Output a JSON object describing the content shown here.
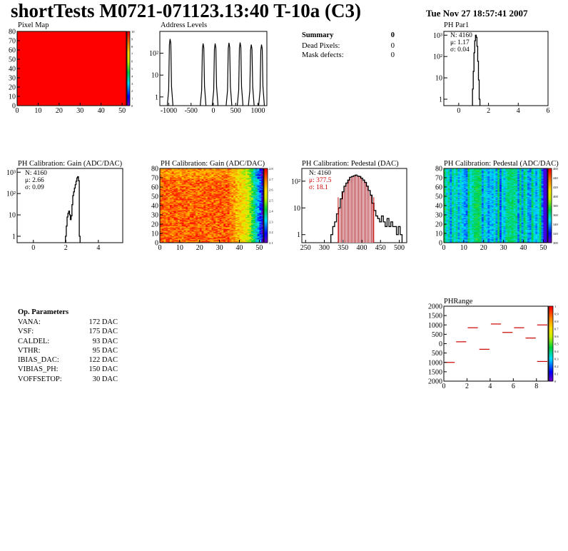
{
  "page": {
    "title": "shortTests M0721-071123.13:40 T-10a (C3)",
    "date": "Tue Nov 27 18:57:41 2007"
  },
  "summary": {
    "title": "Summary",
    "title_value": "0",
    "rows": [
      {
        "label": "Dead Pixels:",
        "value": "0"
      },
      {
        "label": "Mask defects:",
        "value": "0"
      }
    ]
  },
  "op_params": {
    "title": "Op. Parameters",
    "rows": [
      {
        "label": "VANA:",
        "value": "172 DAC"
      },
      {
        "label": "VSF:",
        "value": "175 DAC"
      },
      {
        "label": "CALDEL:",
        "value": "93 DAC"
      },
      {
        "label": "VTHR:",
        "value": "95 DAC"
      },
      {
        "label": "IBIAS_DAC:",
        "value": "122 DAC"
      },
      {
        "label": "VIBIAS_PH:",
        "value": "150 DAC"
      },
      {
        "label": "VOFFSETOP:",
        "value": "30 DAC"
      }
    ]
  },
  "colors": {
    "hist_line": "#000000",
    "stat_red": "#cc0000",
    "pedestal_fill": "#b0202a",
    "range_line": "#cc0000",
    "pixelmap_fill": "#ff0000"
  },
  "chart_data": [
    {
      "id": "pixel_map",
      "type": "heatmap",
      "title": "Pixel Map",
      "xlim": [
        0,
        52
      ],
      "ylim": [
        0,
        80
      ],
      "xticks": [
        0,
        10,
        20,
        30,
        40,
        50
      ],
      "yticks": [
        0,
        10,
        20,
        30,
        40,
        50,
        60,
        70,
        80
      ],
      "zlim": [
        0,
        10
      ],
      "uniform_value": 10,
      "zticks": [
        "0",
        "1",
        "2",
        "3",
        "4",
        "5",
        "6",
        "7",
        "8",
        "9",
        "10"
      ]
    },
    {
      "id": "address_levels",
      "type": "bar",
      "title": "Address Levels",
      "xlim": [
        -1200,
        1200
      ],
      "yscale": "log",
      "ylim": [
        0.4,
        1000
      ],
      "xticks": [
        -1000,
        -500,
        0,
        500,
        1000
      ],
      "yticks": [
        {
          "v": 1,
          "t": "1"
        },
        {
          "v": 10,
          "t": "10"
        },
        {
          "v": 100,
          "t": "10²"
        }
      ],
      "peaks": [
        {
          "x": -970,
          "y": 450
        },
        {
          "x": -230,
          "y": 280
        },
        {
          "x": 40,
          "y": 280
        },
        {
          "x": 350,
          "y": 300
        },
        {
          "x": 600,
          "y": 310
        },
        {
          "x": 850,
          "y": 250
        },
        {
          "x": 1080,
          "y": 250
        }
      ]
    },
    {
      "id": "ph_par1",
      "type": "bar",
      "title": "PH Par1",
      "xlim": [
        -1,
        6
      ],
      "yscale": "log",
      "ylim": [
        0.5,
        1500
      ],
      "xticks": [
        0,
        2,
        4,
        6
      ],
      "yticks": [
        {
          "v": 1,
          "t": "1"
        },
        {
          "v": 10,
          "t": "10"
        },
        {
          "v": 100,
          "t": "10²"
        },
        {
          "v": 1000,
          "t": "10³"
        }
      ],
      "stats": {
        "n": "N: 4160",
        "mean": "μ: 1.17",
        "sigma": "σ: 0.04"
      },
      "x": [
        0.95,
        1.0,
        1.05,
        1.1,
        1.15,
        1.2,
        1.25,
        1.3,
        1.35,
        1.4
      ],
      "values": [
        3,
        20,
        150,
        550,
        1000,
        800,
        300,
        60,
        8,
        1
      ]
    },
    {
      "id": "ph_gain",
      "type": "bar",
      "title": "PH Calibration: Gain (ADC/DAC)",
      "xlim": [
        -1,
        5.5
      ],
      "yscale": "log",
      "ylim": [
        0.5,
        1500
      ],
      "xticks": [
        0,
        2,
        4
      ],
      "yticks": [
        {
          "v": 1,
          "t": "1"
        },
        {
          "v": 10,
          "t": "10"
        },
        {
          "v": 100,
          "t": "10²"
        },
        {
          "v": 1000,
          "t": "10³"
        }
      ],
      "stats": {
        "n": "N: 4160",
        "mean": "μ: 2.66",
        "sigma": "σ: 0.09"
      },
      "x": [
        2.0,
        2.05,
        2.1,
        2.15,
        2.2,
        2.25,
        2.3,
        2.35,
        2.4,
        2.45,
        2.5,
        2.55,
        2.6,
        2.65,
        2.7,
        2.75,
        2.8,
        2.85
      ],
      "values": [
        1,
        3,
        8,
        12,
        15,
        10,
        6,
        9,
        30,
        80,
        120,
        180,
        260,
        380,
        540,
        620,
        400,
        1
      ]
    },
    {
      "id": "ph_gain_map",
      "type": "heatmap",
      "title": "PH Calibration: Gain (ADC/DAC)",
      "xlim": [
        0,
        52
      ],
      "ylim": [
        0,
        80
      ],
      "xticks": [
        0,
        10,
        20,
        30,
        40,
        50
      ],
      "yticks": [
        0,
        10,
        20,
        30,
        40,
        50,
        60,
        70,
        80
      ],
      "zlim": [
        2.05,
        2.8
      ],
      "zticks": [
        "2.1",
        "2.2",
        "2.3",
        "2.4",
        "2.5",
        "2.6",
        "2.7",
        "2.8"
      ]
    },
    {
      "id": "ph_pedestal",
      "type": "bar",
      "title": "PH Calibration: Pedestal (DAC)",
      "xlim": [
        240,
        520
      ],
      "yscale": "log",
      "ylim": [
        0.5,
        300
      ],
      "xticks": [
        250,
        300,
        350,
        400,
        450,
        500
      ],
      "yticks": [
        {
          "v": 1,
          "t": "1"
        },
        {
          "v": 10,
          "t": "10"
        },
        {
          "v": 100,
          "t": "10²"
        }
      ],
      "stats": {
        "n": "N: 4160",
        "mean": "μ: 377.5",
        "sigma": "σ: 18.1"
      },
      "cuts": [
        337,
        432
      ],
      "x": [
        320,
        325,
        330,
        335,
        340,
        345,
        350,
        355,
        360,
        365,
        370,
        375,
        380,
        385,
        390,
        395,
        400,
        405,
        410,
        415,
        420,
        425,
        430,
        435,
        440,
        445,
        450,
        455,
        460,
        465,
        470,
        475,
        480,
        485,
        490,
        495,
        500,
        505
      ],
      "values": [
        1,
        2,
        3,
        6,
        10,
        22,
        40,
        65,
        85,
        110,
        140,
        150,
        160,
        170,
        155,
        150,
        130,
        110,
        90,
        65,
        45,
        30,
        15,
        8,
        5,
        4,
        3,
        5,
        3,
        2,
        4,
        2,
        3,
        2,
        2,
        1,
        2,
        1
      ]
    },
    {
      "id": "ph_pedestal_map",
      "type": "heatmap",
      "title": "PH Calibration: Pedestal (ADC/DAC)",
      "xlim": [
        0,
        52
      ],
      "ylim": [
        0,
        80
      ],
      "xticks": [
        0,
        10,
        20,
        30,
        40,
        50
      ],
      "yticks": [
        0,
        10,
        20,
        30,
        40,
        50,
        60,
        70,
        80
      ],
      "zlim": [
        300,
        470
      ],
      "zticks": [
        "300",
        "320",
        "340",
        "360",
        "380",
        "400",
        "420",
        "440",
        "460"
      ]
    },
    {
      "id": "ph_range",
      "type": "scatter",
      "title": "PHRange",
      "xlim": [
        0,
        9
      ],
      "ylim": [
        -2000,
        2000
      ],
      "xticks": [
        0,
        2,
        4,
        6,
        8
      ],
      "yticks": [
        {
          "v": -2000,
          "t": "2000"
        },
        {
          "v": -1500,
          "t": "1500"
        },
        {
          "v": -1000,
          "t": "1000"
        },
        {
          "v": -500,
          "t": "500"
        },
        {
          "v": 0,
          "t": "0"
        },
        {
          "v": 500,
          "t": "500"
        },
        {
          "v": 1000,
          "t": "1000"
        },
        {
          "v": 1500,
          "t": "1500"
        },
        {
          "v": 2000,
          "t": "2000"
        }
      ],
      "zlim": [
        0,
        1
      ],
      "zticks": [
        "0",
        "0.1",
        "0.2",
        "0.3",
        "0.4",
        "0.5",
        "0.6",
        "0.7",
        "0.8",
        "0.9",
        "1"
      ],
      "x": [
        0.5,
        1.5,
        2.5,
        3.5,
        4.5,
        5.5,
        6.5,
        7.5,
        8.5,
        8.5
      ],
      "values": [
        -1000,
        100,
        850,
        -300,
        1050,
        600,
        850,
        300,
        1000,
        -950
      ]
    }
  ]
}
